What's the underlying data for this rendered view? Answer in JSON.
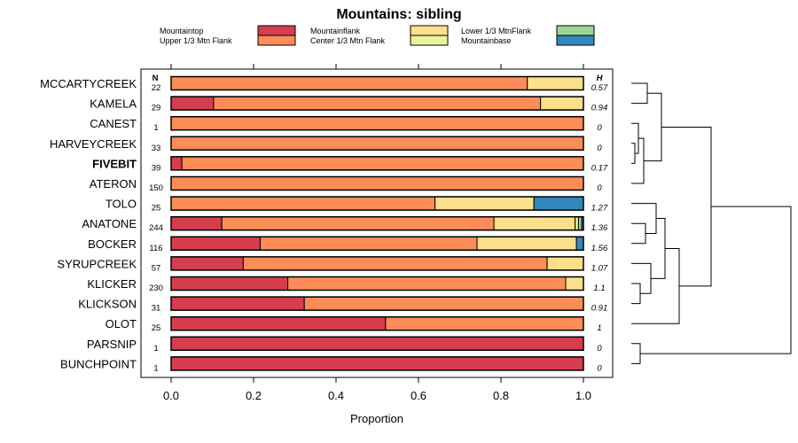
{
  "chart_data": {
    "type": "bar",
    "stacked": true,
    "orientation": "horizontal",
    "title": "Mountains: sibling",
    "xlabel": "Proportion",
    "xlim": [
      0,
      1
    ],
    "xticks": [
      "0.0",
      "0.2",
      "0.4",
      "0.6",
      "0.8",
      "1.0"
    ],
    "n_header": "N",
    "h_header": "H",
    "legend": [
      {
        "name": "Mountaintop",
        "color": "#d53e4f"
      },
      {
        "name": "Upper 1/3 Mtn Flank",
        "color": "#fc8d59"
      },
      {
        "name": "Mountainflank",
        "color": "#fee08b"
      },
      {
        "name": "Center 1/3 Mtn Flank",
        "color": "#e6f598"
      },
      {
        "name": "Lower 1/3 MtnFlank",
        "color": "#99d594"
      },
      {
        "name": "Mountainbase",
        "color": "#3288bd"
      }
    ],
    "rows": [
      {
        "label": "MCCARTYCREEK",
        "n": "22",
        "h": "0.57",
        "bold": false,
        "values": [
          0,
          0.864,
          0.136,
          0,
          0,
          0
        ]
      },
      {
        "label": "KAMELA",
        "n": "29",
        "h": "0.94",
        "bold": false,
        "values": [
          0.103,
          0.793,
          0.104,
          0,
          0,
          0
        ]
      },
      {
        "label": "CANEST",
        "n": "1",
        "h": "0",
        "bold": false,
        "values": [
          0,
          1,
          0,
          0,
          0,
          0
        ]
      },
      {
        "label": "HARVEYCREEK",
        "n": "33",
        "h": "0",
        "bold": false,
        "values": [
          0,
          1,
          0,
          0,
          0,
          0
        ]
      },
      {
        "label": "FIVEBIT",
        "n": "39",
        "h": "0.17",
        "bold": true,
        "values": [
          0.026,
          0.974,
          0,
          0,
          0,
          0
        ]
      },
      {
        "label": "ATERON",
        "n": "150",
        "h": "0",
        "bold": false,
        "values": [
          0,
          1,
          0,
          0,
          0,
          0
        ]
      },
      {
        "label": "TOLO",
        "n": "25",
        "h": "1.27",
        "bold": false,
        "values": [
          0,
          0.64,
          0.24,
          0,
          0,
          0.12
        ]
      },
      {
        "label": "ANATONE",
        "n": "244",
        "h": "1.36",
        "bold": false,
        "values": [
          0.123,
          0.66,
          0.197,
          0.008,
          0.008,
          0.004
        ]
      },
      {
        "label": "BOCKER",
        "n": "116",
        "h": "1.56",
        "bold": false,
        "values": [
          0.216,
          0.526,
          0.241,
          0,
          0,
          0.017
        ]
      },
      {
        "label": "SYRUPCREEK",
        "n": "57",
        "h": "1.07",
        "bold": false,
        "values": [
          0.175,
          0.737,
          0.088,
          0,
          0,
          0
        ]
      },
      {
        "label": "KLICKER",
        "n": "230",
        "h": "1.1",
        "bold": false,
        "values": [
          0.283,
          0.674,
          0.043,
          0,
          0,
          0
        ]
      },
      {
        "label": "KLICKSON",
        "n": "31",
        "h": "0.91",
        "bold": false,
        "values": [
          0.323,
          0.677,
          0,
          0,
          0,
          0
        ]
      },
      {
        "label": "OLOT",
        "n": "25",
        "h": "1",
        "bold": false,
        "values": [
          0.52,
          0.48,
          0,
          0,
          0,
          0
        ]
      },
      {
        "label": "PARSNIP",
        "n": "1",
        "h": "0",
        "bold": false,
        "values": [
          1,
          0,
          0,
          0,
          0,
          0
        ]
      },
      {
        "label": "BUNCHPOINT",
        "n": "1",
        "h": "0",
        "bold": false,
        "values": [
          1,
          0,
          0,
          0,
          0,
          0
        ]
      }
    ],
    "dendrogram": {
      "leaves": [
        "MCCARTYCREEK",
        "KAMELA",
        "CANEST",
        "HARVEYCREEK",
        "FIVEBIT",
        "ATERON",
        "TOLO",
        "ANATONE",
        "BOCKER",
        "SYRUPCREEK",
        "KLICKER",
        "KLICKSON",
        "OLOT",
        "PARSNIP",
        "BUNCHPOINT"
      ],
      "merges": [
        {
          "children": [
            "MCCARTYCREEK",
            "KAMELA"
          ],
          "height": 0.09
        },
        {
          "children": [
            "HARVEYCREEK",
            "FIVEBIT"
          ],
          "height": 0.02
        },
        {
          "children": [
            "CANEST",
            "HARVEYCREEK+FIVEBIT"
          ],
          "height": 0.04
        },
        {
          "children": [
            "CANEST+HARVEYCREEK+FIVEBIT",
            "ATERON"
          ],
          "height": 0.07
        },
        {
          "children": [
            "MCCARTYCREEK+KAMELA",
            "CANEST+HARVEYCREEK+FIVEBIT+ATERON"
          ],
          "height": 0.17
        },
        {
          "children": [
            "ANATONE",
            "BOCKER"
          ],
          "height": 0.08
        },
        {
          "children": [
            "TOLO",
            "ANATONE+BOCKER"
          ],
          "height": 0.14
        },
        {
          "children": [
            "KLICKER",
            "KLICKSON"
          ],
          "height": 0.05
        },
        {
          "children": [
            "SYRUPCREEK",
            "KLICKER+KLICKSON"
          ],
          "height": 0.11
        },
        {
          "children": [
            "TOLO+ANATONE+BOCKER",
            "SYRUPCREEK+KLICKER+KLICKSON"
          ],
          "height": 0.19
        },
        {
          "children": [
            "TOLO+ANATONE+BOCKER+SYRUPCREEK+KLICKER+KLICKSON",
            "OLOT"
          ],
          "height": 0.27
        },
        {
          "children": [
            "MCCARTYCREEK+KAMELA+CANEST+HARVEYCREEK+FIVEBIT+ATERON",
            "TOLO+ANATONE+BOCKER+SYRUPCREEK+KLICKER+KLICKSON+OLOT"
          ],
          "height": 0.45
        },
        {
          "children": [
            "PARSNIP",
            "BUNCHPOINT"
          ],
          "height": 0.05
        },
        {
          "children": [
            "MCCARTYCREEK+KAMELA+CANEST+HARVEYCREEK+FIVEBIT+ATERON+TOLO+ANATONE+BOCKER+SYRUPCREEK+KLICKER+KLICKSON+OLOT",
            "PARSNIP+BUNCHPOINT"
          ],
          "height": 0.9
        }
      ]
    }
  }
}
